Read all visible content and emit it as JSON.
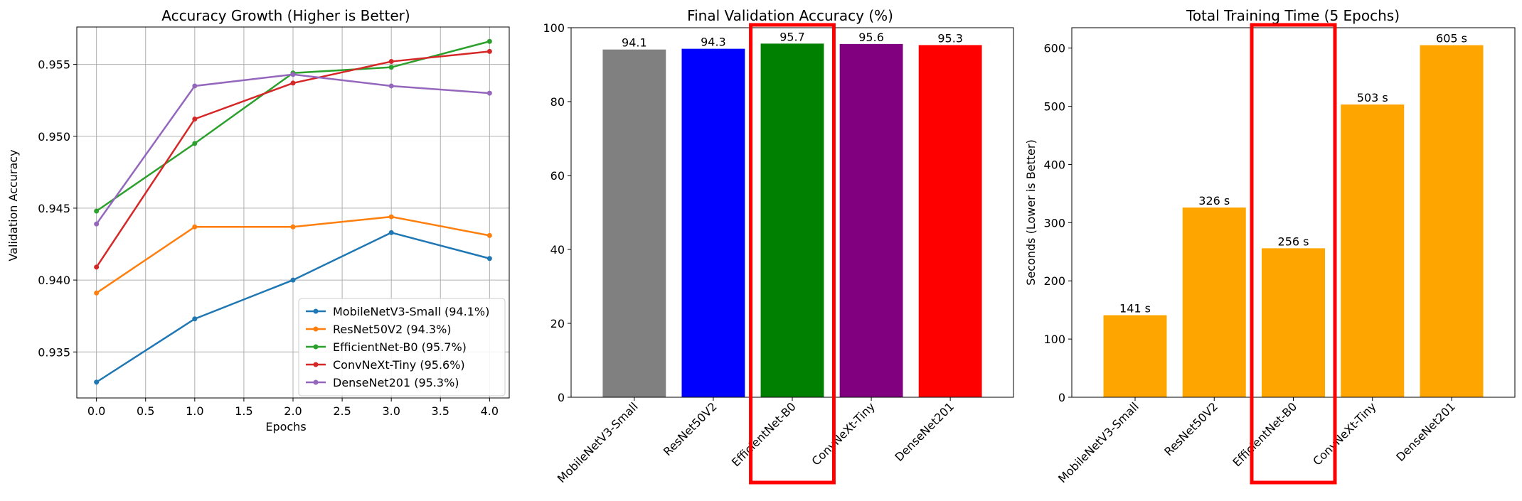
{
  "chart_data": [
    {
      "type": "line",
      "title": "Accuracy Growth (Higher is Better)",
      "xlabel": "Epochs",
      "ylabel": "Validation Accuracy",
      "xlim": [
        -0.2,
        4.2
      ],
      "ylim": [
        0.9318,
        0.9576
      ],
      "xticks": [
        "0.0",
        "0.5",
        "1.0",
        "1.5",
        "2.0",
        "2.5",
        "3.0",
        "3.5",
        "4.0"
      ],
      "yticks": [
        "0.935",
        "0.940",
        "0.945",
        "0.950",
        "0.955"
      ],
      "grid": true,
      "legend_position": "lower-right",
      "x": [
        0,
        1,
        2,
        3,
        4
      ],
      "series": [
        {
          "name": "MobileNetV3-Small (94.1%)",
          "color": "#1f77b4",
          "values": [
            0.9329,
            0.9373,
            0.94,
            0.9433,
            0.9415
          ]
        },
        {
          "name": "ResNet50V2 (94.3%)",
          "color": "#ff7f0e",
          "values": [
            0.9391,
            0.9437,
            0.9437,
            0.9444,
            0.9431
          ]
        },
        {
          "name": "EfficientNet-B0 (95.7%)",
          "color": "#2ca02c",
          "values": [
            0.9448,
            0.9495,
            0.9544,
            0.9548,
            0.9566
          ]
        },
        {
          "name": "ConvNeXt-Tiny (95.6%)",
          "color": "#d62728",
          "values": [
            0.9409,
            0.9512,
            0.9537,
            0.9552,
            0.9559
          ]
        },
        {
          "name": "DenseNet201 (95.3%)",
          "color": "#9467bd",
          "values": [
            0.9439,
            0.9535,
            0.9543,
            0.9535,
            0.953
          ]
        }
      ]
    },
    {
      "type": "bar",
      "title": "Final Validation Accuracy (%)",
      "categories": [
        "MobileNetV3-Small",
        "ResNet50V2",
        "EfficientNet-B0",
        "ConvNeXt-Tiny",
        "DenseNet201"
      ],
      "values": [
        94.1,
        94.3,
        95.7,
        95.6,
        95.3
      ],
      "data_labels": [
        "94.1",
        "94.3",
        "95.7",
        "95.6",
        "95.3"
      ],
      "colors": [
        "#808080",
        "#0000ff",
        "#008000",
        "#800080",
        "#ff0000"
      ],
      "ylim": [
        0,
        100
      ],
      "yticks": [
        "0",
        "20",
        "40",
        "60",
        "80",
        "100"
      ],
      "grid": false,
      "highlight_category": "EfficientNet-B0",
      "highlight_color": "#ff0000"
    },
    {
      "type": "bar",
      "title": "Total Training Time (5 Epochs)",
      "ylabel": "Seconds (Lower is Better)",
      "categories": [
        "MobileNetV3-Small",
        "ResNet50V2",
        "EfficientNet-B0",
        "ConvNeXt-Tiny",
        "DenseNet201"
      ],
      "values": [
        141,
        326,
        256,
        503,
        605
      ],
      "data_labels": [
        "141 s",
        "326 s",
        "256 s",
        "503 s",
        "605 s"
      ],
      "colors": [
        "#ffa500",
        "#ffa500",
        "#ffa500",
        "#ffa500",
        "#ffa500"
      ],
      "ylim": [
        0,
        635
      ],
      "yticks": [
        "0",
        "100",
        "200",
        "300",
        "400",
        "500",
        "600"
      ],
      "grid": false,
      "highlight_category": "EfficientNet-B0",
      "highlight_color": "#ff0000"
    }
  ]
}
